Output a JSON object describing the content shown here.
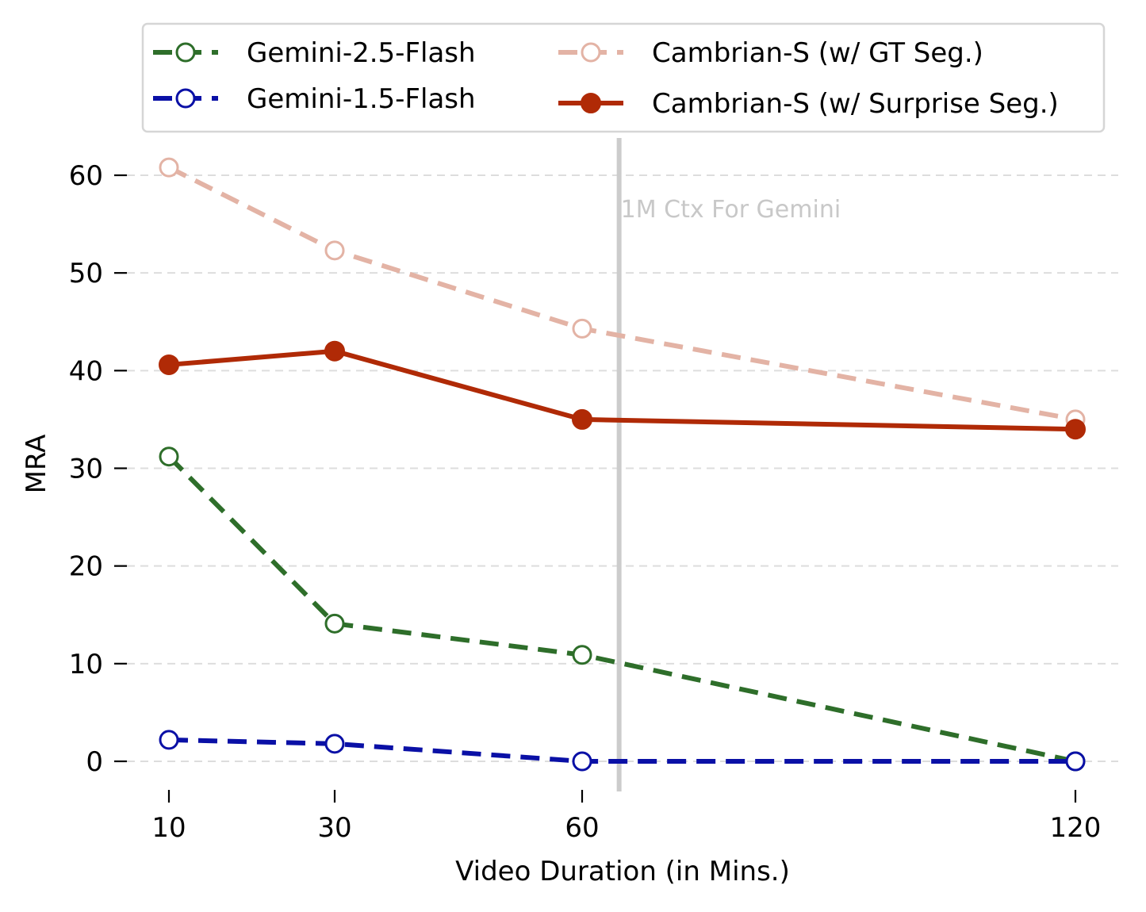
{
  "chart_data": {
    "type": "line",
    "title": "",
    "xlabel": "Video Duration (in Mins.)",
    "ylabel": "MRA",
    "x": [
      10,
      30,
      60,
      120
    ],
    "xticks": [
      "10",
      "30",
      "60",
      "120"
    ],
    "yticks": [
      "0",
      "10",
      "20",
      "30",
      "40",
      "50",
      "60"
    ],
    "ylim": [
      -3,
      64
    ],
    "grid": "horizontal dashed",
    "legend_position": "top",
    "series": [
      {
        "name": "Gemini-2.5-Flash",
        "values": [
          31.2,
          14.1,
          10.9,
          0
        ],
        "color": "#2e6e2a",
        "dash": "dashed",
        "marker": "hollow",
        "opacity": 1
      },
      {
        "name": "Gemini-1.5-Flash",
        "values": [
          2.2,
          1.8,
          0,
          0
        ],
        "color": "#0a10a6",
        "dash": "dashed",
        "marker": "hollow",
        "opacity": 1
      },
      {
        "name": "Cambrian-S (w/ GT Seg.)",
        "values": [
          60.8,
          52.3,
          44.3,
          35.0
        ],
        "color": "#e3b3a5",
        "dash": "dashed",
        "marker": "hollow",
        "opacity": 1
      },
      {
        "name": "Cambrian-S (w/ Surprise Seg.)",
        "values": [
          40.6,
          42.0,
          35.0,
          34.0
        ],
        "color": "#b02a06",
        "dash": "solid",
        "marker": "filled",
        "opacity": 1
      }
    ],
    "annotations": [
      {
        "text": "1M Ctx For Gemini",
        "x": 64.5,
        "type": "vertical-line",
        "color": "#cccccc"
      }
    ]
  }
}
